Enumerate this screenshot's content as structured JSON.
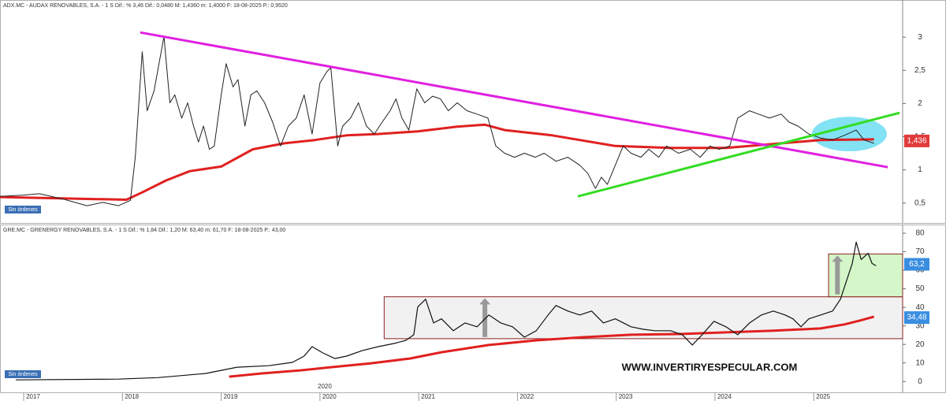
{
  "chart_data": [
    {
      "type": "line",
      "title": "ADX.MC - AUDAX RENOVABLES, S.A. - 1 S  Dif.: % 3,46  Dif.: 0,0480  M: 1,4360  m: 1,4000  F: 18-08-2025  P.: 0,9520",
      "badge": "Sin órdenes",
      "xlim": [
        2016.76,
        2025.9
      ],
      "ylim": [
        0.2,
        3.5
      ],
      "yticks": [
        {
          "value": 0.5,
          "label": "0,5"
        },
        1,
        {
          "value": 1.5,
          "label": "1,5"
        },
        2,
        {
          "value": 2.5,
          "label": "2,5"
        },
        3
      ],
      "series": [
        {
          "color": "#e02020",
          "width": 3,
          "x": [
            2016.76,
            2018.04,
            2018.2,
            2018.44,
            2018.68,
            2019.0,
            2019.32,
            2019.64,
            2019.95,
            2020.27,
            2020.59,
            2020.99,
            2021.39,
            2021.67,
            2021.87,
            2022.35,
            2022.99,
            2023.55,
            2024.11,
            2024.59,
            2025.07,
            2025.61
          ],
          "values": [
            0.59,
            0.55,
            0.66,
            0.84,
            0.98,
            1.05,
            1.31,
            1.4,
            1.45,
            1.52,
            1.54,
            1.58,
            1.65,
            1.68,
            1.6,
            1.52,
            1.36,
            1.33,
            1.33,
            1.39,
            1.45,
            1.46
          ]
        },
        {
          "color": "#222222",
          "width": 1,
          "x": [
            2016.76,
            2017.0,
            2017.16,
            2017.4,
            2017.64,
            2017.8,
            2017.96,
            2018.08,
            2018.13,
            2018.2,
            2018.25,
            2018.32,
            2018.42,
            2018.48,
            2018.53,
            2018.6,
            2018.66,
            2018.72,
            2018.77,
            2018.82,
            2018.88,
            2018.93,
            2019.0,
            2019.05,
            2019.12,
            2019.17,
            2019.24,
            2019.3,
            2019.36,
            2019.44,
            2019.52,
            2019.6,
            2019.68,
            2019.76,
            2019.84,
            2019.92,
            2020.0,
            2020.07,
            2020.11,
            2020.18,
            2020.23,
            2020.31,
            2020.39,
            2020.47,
            2020.55,
            2020.63,
            2020.71,
            2020.77,
            2020.83,
            2020.9,
            2020.98,
            2021.06,
            2021.14,
            2021.22,
            2021.3,
            2021.39,
            2021.49,
            2021.59,
            2021.7,
            2021.78,
            2021.87,
            2021.97,
            2022.07,
            2022.18,
            2022.27,
            2022.39,
            2022.51,
            2022.63,
            2022.71,
            2022.79,
            2022.85,
            2022.91,
            2022.99,
            2023.07,
            2023.15,
            2023.25,
            2023.33,
            2023.43,
            2023.51,
            2023.63,
            2023.75,
            2023.85,
            2023.95,
            2024.04,
            2024.15,
            2024.23,
            2024.35,
            2024.44,
            2024.55,
            2024.67,
            2024.75,
            2024.84,
            2024.95,
            2025.07,
            2025.19,
            2025.31,
            2025.43,
            2025.51,
            2025.61
          ],
          "values": [
            0.6,
            0.62,
            0.64,
            0.56,
            0.46,
            0.51,
            0.46,
            0.54,
            1.19,
            2.78,
            1.89,
            2.19,
            3.01,
            2.01,
            2.13,
            1.78,
            2.01,
            1.66,
            1.42,
            1.66,
            1.31,
            1.36,
            2.13,
            2.6,
            2.25,
            2.36,
            1.66,
            2.13,
            2.19,
            2.01,
            1.72,
            1.36,
            1.66,
            1.78,
            2.13,
            1.54,
            2.31,
            2.48,
            2.54,
            1.36,
            1.66,
            1.78,
            2.01,
            1.66,
            1.54,
            1.72,
            1.89,
            2.07,
            1.78,
            1.6,
            2.22,
            2.01,
            2.11,
            2.07,
            1.89,
            2.01,
            1.89,
            1.84,
            1.78,
            1.36,
            1.25,
            1.19,
            1.25,
            1.19,
            1.25,
            1.13,
            1.19,
            1.07,
            0.95,
            0.72,
            0.89,
            0.78,
            1.07,
            1.36,
            1.25,
            1.19,
            1.31,
            1.19,
            1.36,
            1.25,
            1.31,
            1.19,
            1.36,
            1.31,
            1.36,
            1.78,
            1.89,
            1.84,
            1.78,
            1.84,
            1.72,
            1.66,
            1.54,
            1.48,
            1.45,
            1.52,
            1.6,
            1.45,
            1.4
          ]
        },
        {
          "color": "#e020e0",
          "width": 3,
          "x": [
            2018.18,
            2025.75
          ],
          "values": [
            3.07,
            1.04
          ]
        },
        {
          "color": "#33dd22",
          "width": 3,
          "x": [
            2022.61,
            2025.87
          ],
          "values": [
            0.6,
            1.86
          ]
        }
      ],
      "shapes": [
        {
          "kind": "ellipse",
          "color": "#5ad8f0",
          "x": [
            2024.98,
            2025.74
          ],
          "y": [
            1.28,
            1.8
          ]
        }
      ],
      "last_labels": [
        {
          "value": 1.436,
          "label": "1,436",
          "color": "#e03a3a"
        }
      ]
    },
    {
      "type": "line",
      "title": "GRE.MC - GRENERGY RENOVABLES, S.A. - 1 S  Dif.: % 1,84  Dif.: 1,20  M: 63,40  m: 61,70  F: 18-08-2025  P.: 43,00",
      "badge": "Sin órdenes",
      "watermark": "WWW.INVERTIRYESPECULAR.COM",
      "period_label": "2020",
      "xlim": [
        2016.76,
        2025.9
      ],
      "xticks": [
        2017,
        2018,
        2019,
        2020,
        2021,
        2022,
        2023,
        2024,
        2025
      ],
      "ylim": [
        -5,
        80
      ],
      "yticks": [
        0,
        10,
        20,
        30,
        40,
        50,
        60,
        70,
        80
      ],
      "shapes": [
        {
          "kind": "rect",
          "color": "#eeeeee",
          "x": [
            2020.65,
            2025.9
          ],
          "y": [
            23.1,
            45.7
          ]
        },
        {
          "kind": "rect",
          "color": "#cdf5c0",
          "x": [
            2025.15,
            2025.9
          ],
          "y": [
            45.7,
            68.8
          ]
        },
        {
          "kind": "arrow",
          "color": "#999999",
          "x": [
            2021.67,
            2021.67
          ],
          "y": [
            24,
            45
          ]
        },
        {
          "kind": "arrow",
          "color": "#999999",
          "x": [
            2025.24,
            2025.24
          ],
          "y": [
            47,
            68
          ]
        }
      ],
      "series": [
        {
          "color": "#e02020",
          "width": 3,
          "x": [
            2019.08,
            2019.4,
            2019.8,
            2020.11,
            2020.51,
            2020.91,
            2021.23,
            2021.71,
            2022.19,
            2022.67,
            2023.15,
            2023.63,
            2024.11,
            2024.59,
            2025.07,
            2025.31,
            2025.47,
            2025.61
          ],
          "values": [
            2.6,
            4.3,
            6.0,
            7.7,
            9.8,
            12.4,
            15.8,
            19.7,
            22.2,
            23.9,
            25.2,
            25.6,
            26.5,
            27.4,
            28.6,
            30.8,
            32.9,
            35.0
          ]
        },
        {
          "color": "#111111",
          "width": 1.2,
          "x": [
            2016.92,
            2017.96,
            2018.36,
            2018.84,
            2019.16,
            2019.48,
            2019.72,
            2019.84,
            2019.92,
            2020.03,
            2020.15,
            2020.27,
            2020.43,
            2020.59,
            2020.75,
            2020.87,
            2020.95,
            2020.99,
            2021.07,
            2021.15,
            2021.23,
            2021.35,
            2021.47,
            2021.59,
            2021.71,
            2021.83,
            2021.95,
            2022.07,
            2022.19,
            2022.31,
            2022.39,
            2022.51,
            2022.63,
            2022.75,
            2022.87,
            2022.99,
            2023.15,
            2023.27,
            2023.39,
            2023.55,
            2023.67,
            2023.77,
            2023.87,
            2023.99,
            2024.11,
            2024.23,
            2024.35,
            2024.47,
            2024.59,
            2024.71,
            2024.79,
            2024.87,
            2024.95,
            2025.07,
            2025.19,
            2025.27,
            2025.35,
            2025.39,
            2025.43,
            2025.48,
            2025.55,
            2025.59,
            2025.63
          ],
          "values": [
            0.85,
            1.3,
            2.1,
            4.3,
            7.7,
            8.5,
            10.3,
            13.7,
            18.8,
            15.4,
            12.4,
            13.7,
            16.7,
            18.8,
            20.5,
            22.2,
            25.2,
            40.2,
            44.4,
            31.6,
            33.8,
            27.4,
            31.6,
            29.5,
            35.9,
            31.6,
            29.5,
            23.9,
            27.4,
            35.9,
            41.0,
            38.0,
            35.9,
            38.0,
            31.6,
            33.8,
            29.5,
            28.2,
            27.4,
            27.4,
            25.2,
            19.7,
            25.2,
            32.5,
            29.5,
            25.2,
            31.6,
            35.9,
            38.0,
            35.9,
            33.8,
            29.5,
            33.8,
            35.9,
            38.0,
            44.4,
            57.3,
            63.7,
            75.2,
            65.8,
            69.2,
            63.7,
            62.4
          ]
        }
      ],
      "last_labels": [
        {
          "value": 63.2,
          "label": "63,2",
          "color": "#3a8ee0"
        },
        {
          "value": 34.48,
          "label": "34,48",
          "color": "#3a8ee0"
        }
      ]
    }
  ]
}
